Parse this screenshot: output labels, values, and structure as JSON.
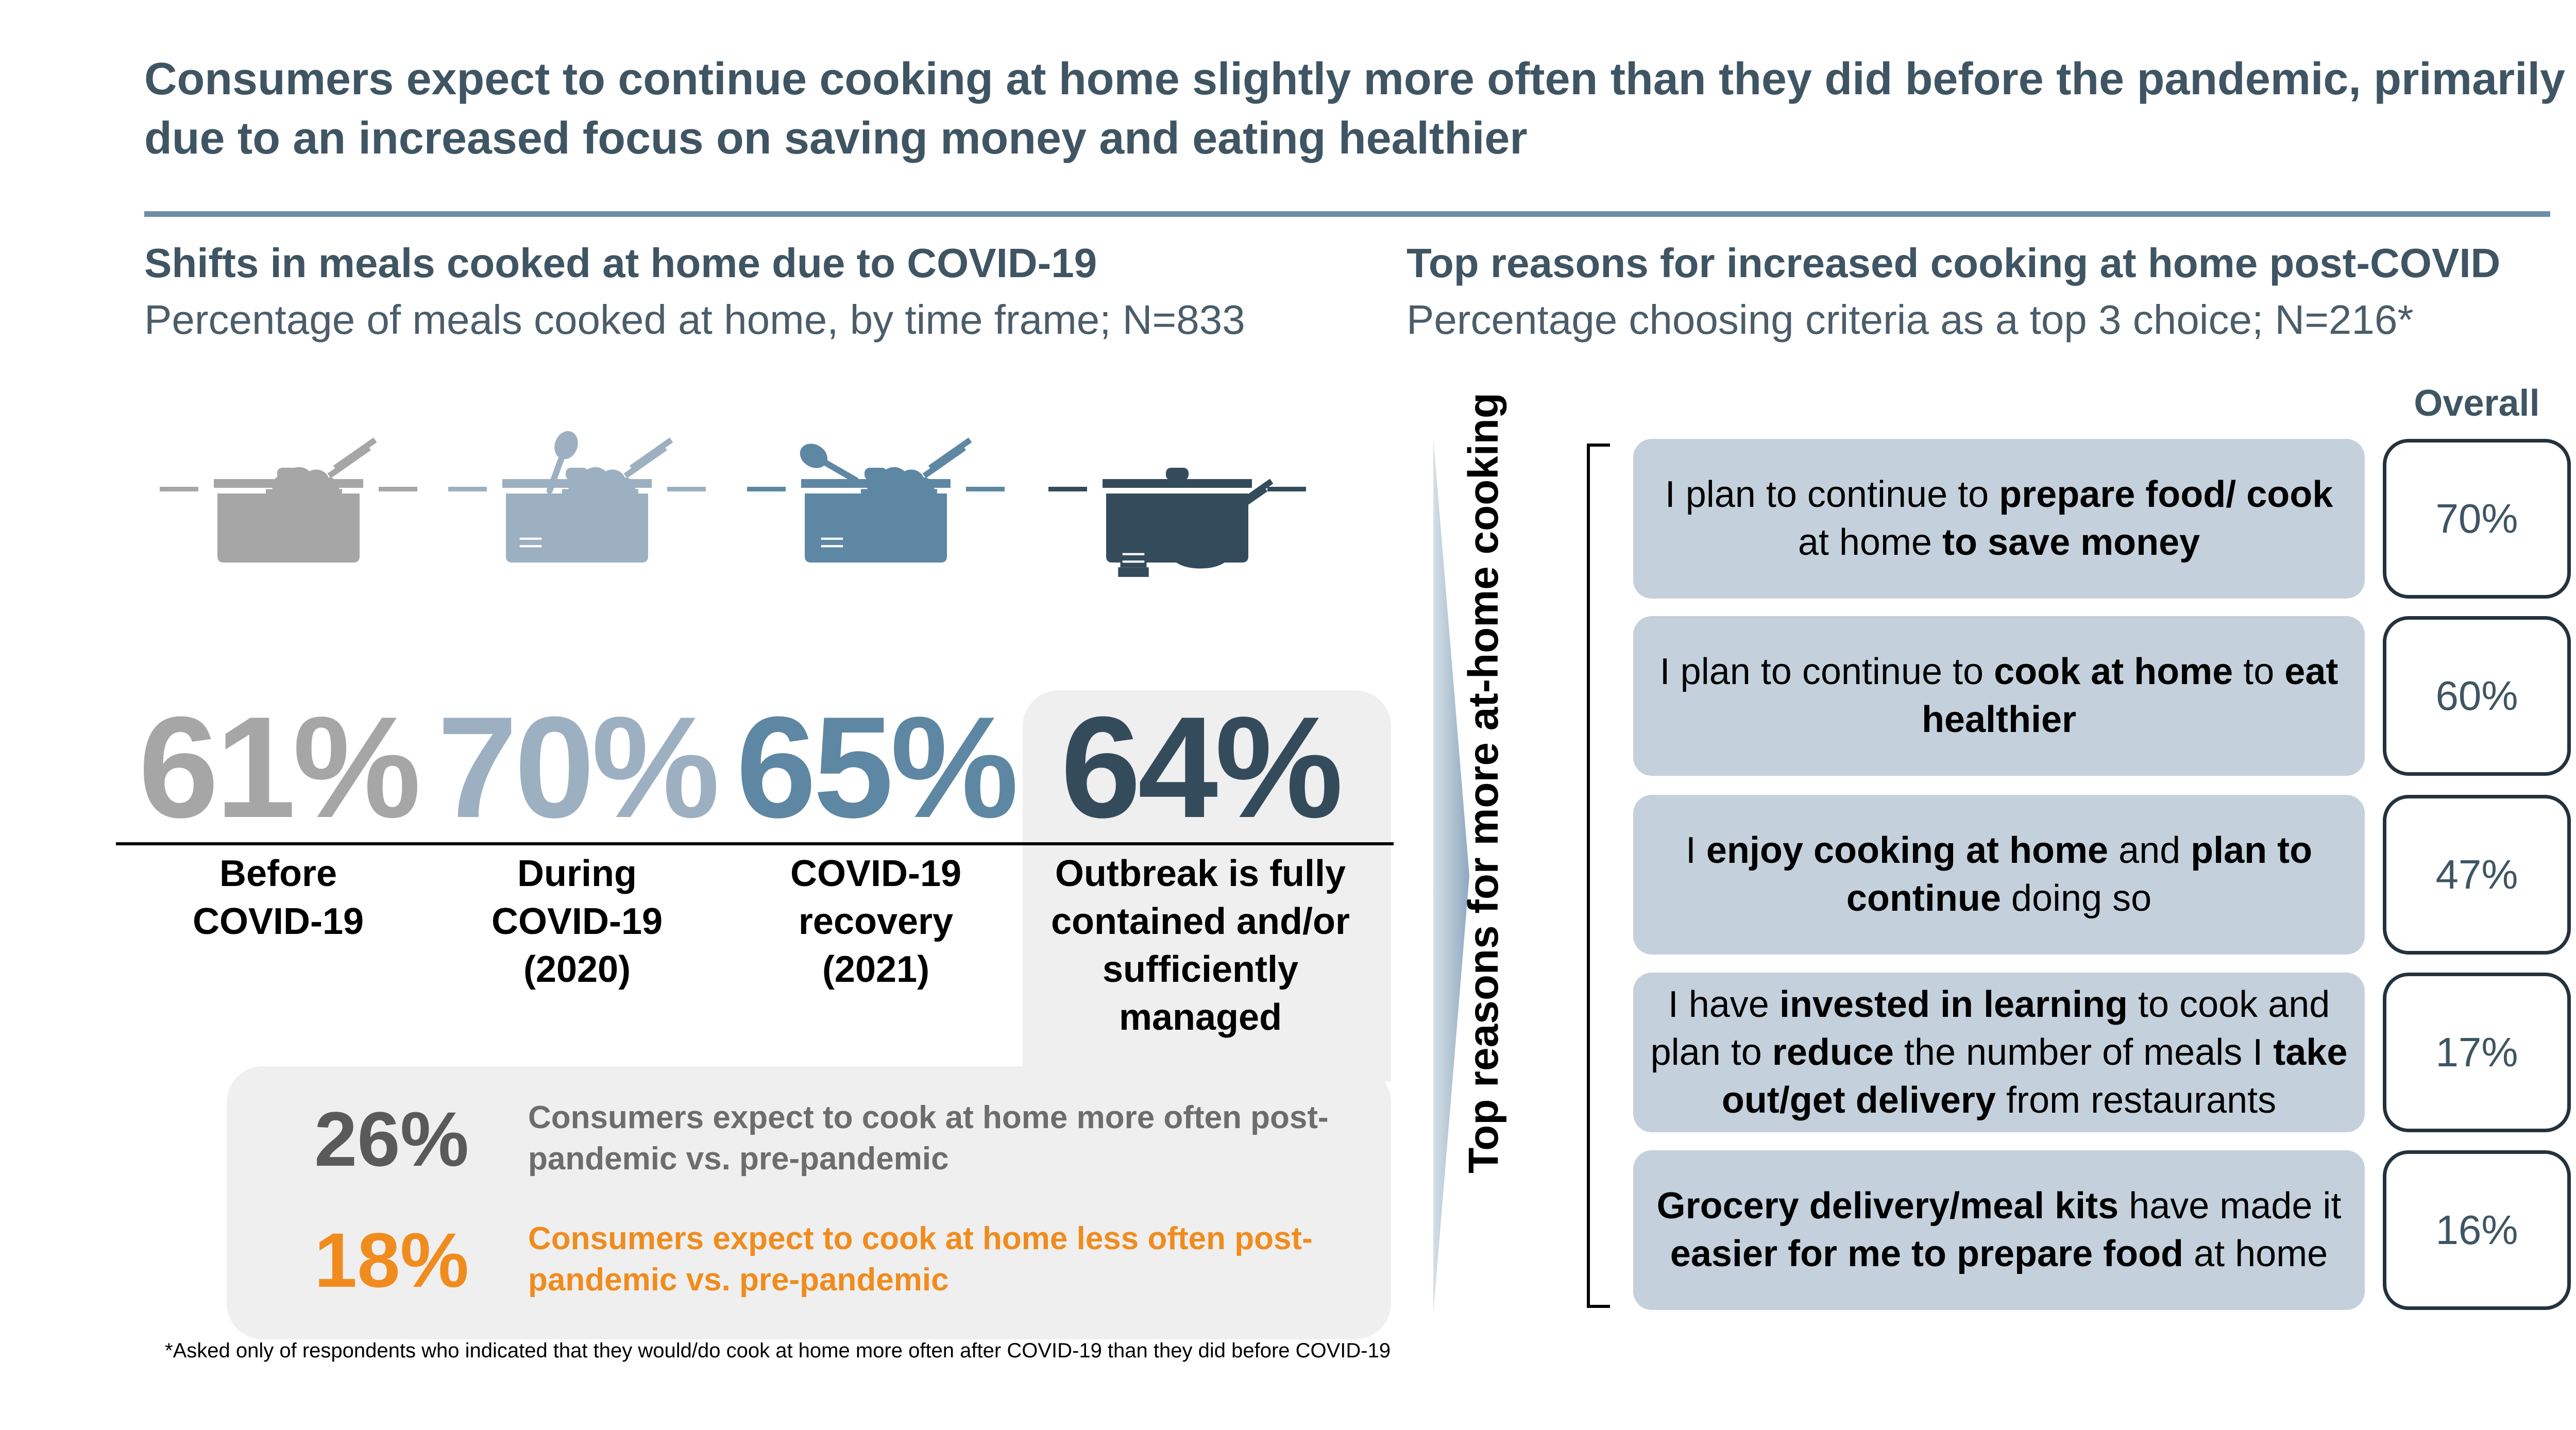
{
  "title": "Consumers expect to continue cooking at home slightly more often than they did before the pandemic, primarily due to an increased focus on saving money and eating healthier",
  "left": {
    "heading": "Shifts in meals cooked at home due to COVID-19",
    "subheading": "Percentage of meals cooked at home, by time frame; N=833"
  },
  "right": {
    "heading": "Top reasons for increased cooking at home post-COVID",
    "subheading": "Percentage choosing criteria as a top 3 choice; N=216*",
    "column_header": "Overall",
    "vertical_label": "Top reasons for more at-home cooking"
  },
  "chart_data": [
    {
      "type": "bar",
      "categories": [
        "Before COVID-19",
        "During COVID-19 (2020)",
        "COVID-19 recovery (2021)",
        "Outbreak is fully contained and/or sufficiently managed"
      ],
      "values": [
        61,
        70,
        65,
        64
      ],
      "value_labels": [
        "61%",
        "70%",
        "65%",
        "64%"
      ],
      "colors": [
        "#a6a6a6",
        "#9db0c1",
        "#5e87a3",
        "#344b5c"
      ],
      "category_lines": [
        [
          "Before",
          "COVID-19"
        ],
        [
          "During",
          "COVID-19",
          "(2020)"
        ],
        [
          "COVID-19",
          "recovery",
          "(2021)"
        ],
        [
          "Outbreak is fully",
          "contained and/or",
          "sufficiently",
          "managed"
        ]
      ]
    },
    {
      "type": "table",
      "categories": [
        "I plan to continue to prepare food/ cook at home to save money",
        "I plan to continue to cook at home to eat healthier",
        "I enjoy cooking at home and plan to continue doing so",
        "I have invested in learning to cook and plan to reduce the number of meals I take out/get delivery from restaurants",
        "Grocery delivery/meal kits have made it easier for me to prepare food at home"
      ],
      "values": [
        70,
        60,
        47,
        17,
        16
      ],
      "value_labels": [
        "70%",
        "60%",
        "47%",
        "17%",
        "16%"
      ],
      "reason_segments": [
        [
          [
            "I plan to continue to ",
            false
          ],
          [
            "prepare food/ cook",
            true
          ],
          [
            " at home ",
            false
          ],
          [
            "to save money",
            true
          ]
        ],
        [
          [
            "I plan to continue to ",
            false
          ],
          [
            "cook at home",
            true
          ],
          [
            " to ",
            false
          ],
          [
            "eat healthier",
            true
          ]
        ],
        [
          [
            "I ",
            false
          ],
          [
            "enjoy cooking at home",
            true
          ],
          [
            " and ",
            false
          ],
          [
            "plan to continue",
            true
          ],
          [
            " doing so",
            false
          ]
        ],
        [
          [
            "I have ",
            false
          ],
          [
            "invested in learning",
            true
          ],
          [
            " to cook and plan to ",
            false
          ],
          [
            "reduce",
            true
          ],
          [
            " the number of meals I ",
            false
          ],
          [
            "take out/get delivery",
            true
          ],
          [
            " from restaurants",
            false
          ]
        ],
        [
          [
            "Grocery delivery/meal kits",
            true
          ],
          [
            " have made it ",
            false
          ],
          [
            "easier for me to prepare food",
            true
          ],
          [
            " at home",
            false
          ]
        ]
      ]
    }
  ],
  "stats": [
    {
      "value": "26%",
      "text": "Consumers expect to cook at home more often post-pandemic vs. pre-pandemic",
      "color": "#6d6d6d",
      "num_color": "#5a5a5a"
    },
    {
      "value": "18%",
      "text": "Consumers expect to cook at home less often post-pandemic vs. pre-pandemic",
      "color": "#f08c1e",
      "num_color": "#f08c1e"
    }
  ],
  "footnote": "*Asked only of respondents who indicated that they would/do cook at home more often after COVID-19 than they did before COVID-19",
  "icons": [
    "cooking-pot-icon",
    "rice-bowl-icon",
    "takeout-bowl-icon",
    "fork-spoon-icon",
    "cake-icon"
  ]
}
